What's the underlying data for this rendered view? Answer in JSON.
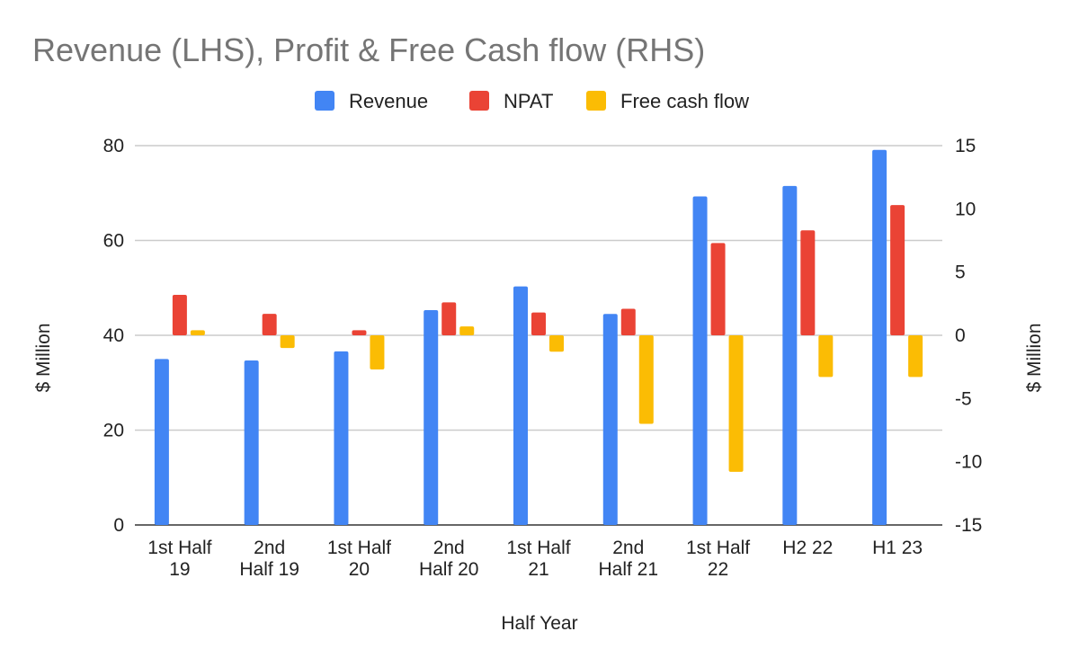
{
  "chart_data": {
    "type": "bar",
    "title": "Revenue (LHS), Profit & Free Cash flow (RHS)",
    "xlabel": "Half Year",
    "ylabel_left": "$ Million",
    "ylabel_right": "$ Million",
    "ylim_left": [
      0,
      80
    ],
    "yticks_left": [
      0,
      20,
      40,
      60,
      80
    ],
    "ylim_right": [
      -15,
      15
    ],
    "yticks_right": [
      -15,
      -10,
      -5,
      0,
      5,
      10,
      15
    ],
    "grid": true,
    "legend_position": "top-center",
    "categories": [
      [
        "1st Half",
        "19"
      ],
      [
        "2nd",
        "Half 19"
      ],
      [
        "1st Half",
        "20"
      ],
      [
        "2nd",
        "Half 20"
      ],
      [
        "1st Half",
        "21"
      ],
      [
        "2nd",
        "Half 21"
      ],
      [
        "1st Half",
        "22"
      ],
      [
        "H2 22"
      ],
      [
        "H1 23"
      ]
    ],
    "series": [
      {
        "name": "Revenue",
        "axis": "left",
        "color": "#4285F4",
        "values": [
          35,
          34.7,
          36.6,
          45.3,
          50.3,
          44.5,
          69.3,
          71.5,
          79.1
        ]
      },
      {
        "name": "NPAT",
        "axis": "right",
        "color": "#EA4335",
        "values": [
          3.2,
          1.7,
          0.4,
          2.6,
          1.8,
          2.1,
          7.3,
          8.3,
          10.3
        ]
      },
      {
        "name": "Free cash flow",
        "axis": "right",
        "color": "#FBBC04",
        "values": [
          0.4,
          -1,
          -2.7,
          0.7,
          -1.3,
          -7,
          -10.8,
          -3.3,
          -3.3
        ]
      }
    ]
  }
}
